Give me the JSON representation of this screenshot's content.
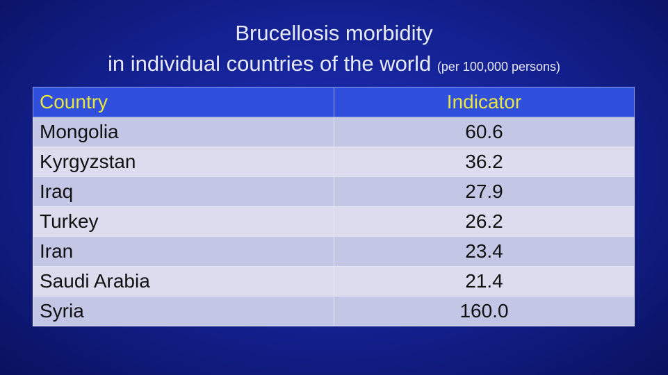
{
  "header": {
    "title_line1": "Brucellosis morbidity",
    "title_line2": "in individual countries of the world",
    "subtitle": "(per 100,000 persons)"
  },
  "table": {
    "columns": [
      "Country",
      "Indicator"
    ],
    "rows": [
      [
        "Mongolia",
        "60.6"
      ],
      [
        "Kyrgyzstan",
        "36.2"
      ],
      [
        "Iraq",
        "27.9"
      ],
      [
        "Turkey",
        "26.2"
      ],
      [
        "Iran",
        "23.4"
      ],
      [
        "Saudi Arabia",
        "21.4"
      ],
      [
        "Syria",
        "160.0"
      ]
    ]
  }
}
